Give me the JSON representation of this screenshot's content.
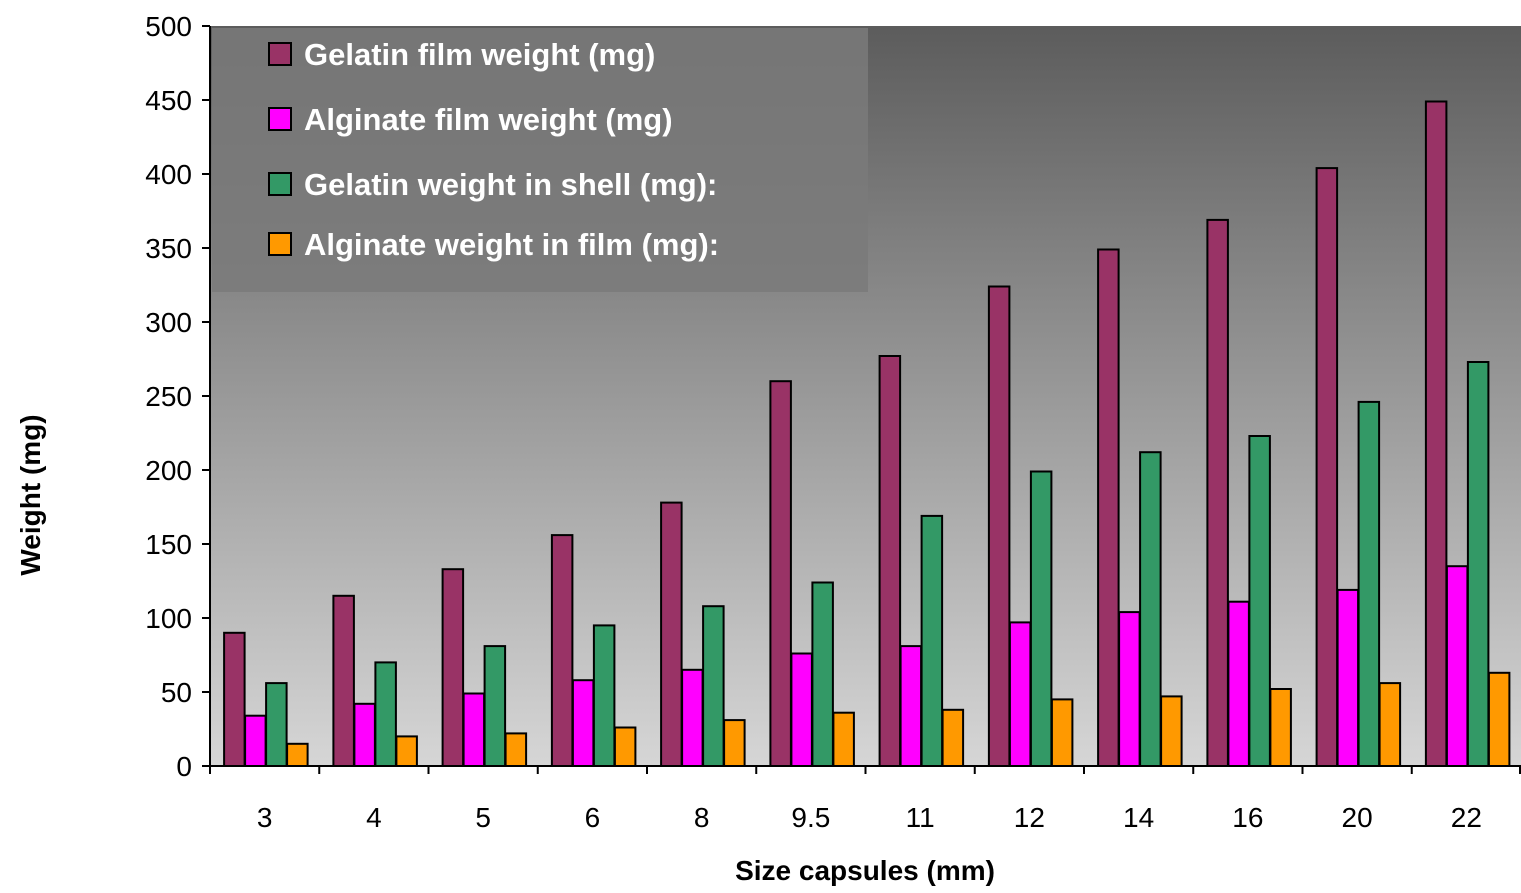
{
  "chart_data": {
    "type": "bar",
    "xlabel": "Size capsules (mm)",
    "ylabel": "Weight (mg)",
    "categories": [
      "3",
      "4",
      "5",
      "6",
      "8",
      "9.5",
      "11",
      "12",
      "14",
      "16",
      "20",
      "22"
    ],
    "ylim": [
      0,
      500
    ],
    "yticks": [
      "0",
      "50",
      "100",
      "150",
      "200",
      "250",
      "300",
      "350",
      "400",
      "450",
      "500"
    ],
    "legend_position": "top-left",
    "grid": false,
    "series": [
      {
        "name": "Gelatin film weight (mg)",
        "color": "#993366",
        "values": [
          90,
          115,
          133,
          156,
          178,
          260,
          277,
          324,
          349,
          369,
          404,
          449
        ]
      },
      {
        "name": "Alginate film weight (mg)",
        "color": "#ff00ff",
        "values": [
          34,
          42,
          49,
          58,
          65,
          76,
          81,
          97,
          104,
          111,
          119,
          135
        ]
      },
      {
        "name": "Gelatin weight in shell (mg):",
        "color": "#339966",
        "values": [
          56,
          70,
          81,
          95,
          108,
          124,
          169,
          199,
          212,
          223,
          246,
          273
        ]
      },
      {
        "name": "Alginate weight in film (mg):",
        "color": "#ff9900",
        "values": [
          15,
          20,
          22,
          26,
          31,
          36,
          38,
          45,
          47,
          52,
          56,
          63
        ]
      }
    ]
  },
  "plot_colors": {
    "background_top": "#5c5c5c",
    "background_bottom": "#d6d6d6",
    "legend_box": "#7a7a7a",
    "bar_outline": "#000000"
  }
}
